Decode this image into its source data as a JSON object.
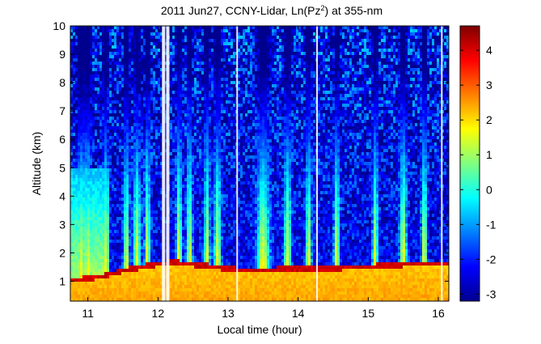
{
  "chart_data": {
    "type": "heatmap",
    "title_parts": [
      "2011 Jun27, CCNY-Lidar, Ln(Pz",
      "2",
      ") at 355-nm"
    ],
    "xlabel": "Local time (hour)",
    "ylabel": "Altitude (km)",
    "xlim": [
      10.75,
      16.15
    ],
    "ylim": [
      0.3,
      10
    ],
    "xticks": [
      11,
      12,
      13,
      14,
      15,
      16
    ],
    "yticks": [
      1,
      2,
      3,
      4,
      5,
      6,
      7,
      8,
      9,
      10
    ],
    "colorbar": {
      "min": -3.2,
      "max": 4.7,
      "ticks": [
        -3,
        -2,
        -1,
        0,
        1,
        2,
        3,
        4
      ]
    },
    "colormap": [
      "#00008f",
      "#0000ff",
      "#0080ff",
      "#00ffff",
      "#80ff80",
      "#ffff00",
      "#ff8000",
      "#ff0000",
      "#800000"
    ],
    "data_gaps": [
      12.08,
      12.14,
      13.13,
      14.27,
      16.05
    ],
    "boundary_layer_top_km": [
      [
        10.75,
        1.05
      ],
      [
        11.2,
        1.2
      ],
      [
        11.5,
        1.4
      ],
      [
        11.8,
        1.55
      ],
      [
        12.05,
        1.65
      ],
      [
        12.2,
        1.7
      ],
      [
        12.6,
        1.6
      ],
      [
        12.9,
        1.5
      ],
      [
        13.3,
        1.4
      ],
      [
        13.7,
        1.45
      ],
      [
        14.0,
        1.5
      ],
      [
        14.3,
        1.45
      ],
      [
        14.6,
        1.5
      ],
      [
        15.0,
        1.55
      ],
      [
        15.4,
        1.6
      ],
      [
        15.7,
        1.65
      ],
      [
        16.15,
        1.65
      ]
    ],
    "cloud_plumes": [
      [
        10.9,
        0.05
      ],
      [
        11.0,
        0.05
      ],
      [
        11.25,
        0.04
      ],
      [
        11.55,
        0.04
      ],
      [
        11.7,
        0.05
      ],
      [
        11.85,
        0.04
      ],
      [
        12.3,
        0.04
      ],
      [
        12.45,
        0.04
      ],
      [
        12.7,
        0.04
      ],
      [
        12.85,
        0.05
      ],
      [
        13.5,
        0.09
      ],
      [
        13.85,
        0.05
      ],
      [
        14.15,
        0.04
      ],
      [
        14.55,
        0.04
      ],
      [
        15.1,
        0.04
      ],
      [
        15.5,
        0.05
      ],
      [
        15.8,
        0.04
      ]
    ]
  }
}
